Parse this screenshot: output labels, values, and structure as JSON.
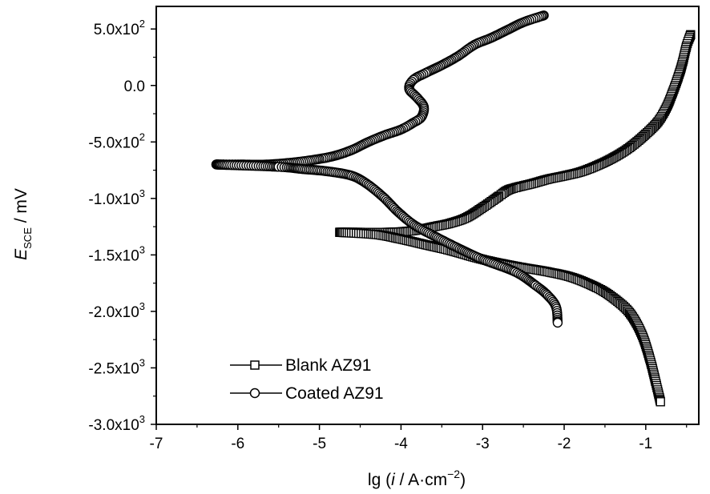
{
  "chart_data": {
    "type": "line",
    "xlabel": {
      "base": "lg (",
      "italic": "i",
      "middle": " / A·cm",
      "sup": "−2",
      "end": ")"
    },
    "ylabel": {
      "var": "E",
      "sub": "SCE",
      "unit": " / mV"
    },
    "xlim": [
      -7,
      -0.35
    ],
    "ylim": [
      -3000,
      700
    ],
    "x_ticks": [
      -7,
      -6,
      -5,
      -4,
      -3,
      -2,
      -1
    ],
    "x_tick_labels": [
      "-7",
      "-6",
      "-5",
      "-4",
      "-3",
      "-2",
      "-1"
    ],
    "y_ticks": [
      500,
      0,
      -500,
      -1000,
      -1500,
      -2000,
      -2500,
      -3000
    ],
    "y_tick_labels": [
      {
        "main": "5.0x10",
        "exp": "2"
      },
      {
        "main": "0.0",
        "exp": ""
      },
      {
        "main": "-5.0x10",
        "exp": "2"
      },
      {
        "main": "-1.0x10",
        "exp": "3"
      },
      {
        "main": "-1.5x10",
        "exp": "3"
      },
      {
        "main": "-2.0x10",
        "exp": "3"
      },
      {
        "main": "-2.5x10",
        "exp": "3"
      },
      {
        "main": "-3.0x10",
        "exp": "3"
      }
    ],
    "grid": false,
    "legend_position": "bottom-left",
    "series": [
      {
        "name": "Blank AZ91",
        "marker": "square",
        "points": [
          [
            -0.45,
            450
          ],
          [
            -0.5,
            350
          ],
          [
            -0.55,
            200
          ],
          [
            -0.6,
            80
          ],
          [
            -0.68,
            -80
          ],
          [
            -0.75,
            -200
          ],
          [
            -0.85,
            -320
          ],
          [
            -1.0,
            -430
          ],
          [
            -1.2,
            -550
          ],
          [
            -1.4,
            -640
          ],
          [
            -1.6,
            -710
          ],
          [
            -1.8,
            -765
          ],
          [
            -2.0,
            -800
          ],
          [
            -2.2,
            -830
          ],
          [
            -2.4,
            -870
          ],
          [
            -2.6,
            -905
          ],
          [
            -2.7,
            -930
          ],
          [
            -2.8,
            -980
          ],
          [
            -3.0,
            -1080
          ],
          [
            -3.2,
            -1170
          ],
          [
            -3.4,
            -1220
          ],
          [
            -3.6,
            -1250
          ],
          [
            -3.8,
            -1280
          ],
          [
            -4.0,
            -1295
          ],
          [
            -4.2,
            -1300
          ],
          [
            -4.45,
            -1300
          ],
          [
            -4.75,
            -1300
          ],
          [
            -4.3,
            -1320
          ],
          [
            -4.0,
            -1360
          ],
          [
            -3.7,
            -1410
          ],
          [
            -3.4,
            -1460
          ],
          [
            -3.0,
            -1540
          ],
          [
            -2.6,
            -1600
          ],
          [
            -2.2,
            -1650
          ],
          [
            -1.9,
            -1700
          ],
          [
            -1.6,
            -1790
          ],
          [
            -1.4,
            -1880
          ],
          [
            -1.2,
            -2010
          ],
          [
            -1.05,
            -2200
          ],
          [
            -0.95,
            -2420
          ],
          [
            -0.88,
            -2620
          ],
          [
            -0.82,
            -2800
          ]
        ]
      },
      {
        "name": "Coated AZ91",
        "marker": "circle",
        "points": [
          [
            -2.25,
            620
          ],
          [
            -2.5,
            560
          ],
          [
            -2.7,
            490
          ],
          [
            -2.9,
            420
          ],
          [
            -3.1,
            360
          ],
          [
            -3.3,
            260
          ],
          [
            -3.5,
            180
          ],
          [
            -3.7,
            110
          ],
          [
            -3.85,
            50
          ],
          [
            -3.9,
            -30
          ],
          [
            -3.8,
            -110
          ],
          [
            -3.72,
            -190
          ],
          [
            -3.75,
            -280
          ],
          [
            -3.85,
            -330
          ],
          [
            -4.0,
            -390
          ],
          [
            -4.2,
            -440
          ],
          [
            -4.4,
            -500
          ],
          [
            -4.6,
            -570
          ],
          [
            -4.8,
            -620
          ],
          [
            -5.0,
            -650
          ],
          [
            -5.3,
            -680
          ],
          [
            -5.65,
            -700
          ],
          [
            -5.97,
            -700
          ],
          [
            -6.25,
            -700
          ],
          [
            -5.5,
            -720
          ],
          [
            -5.2,
            -740
          ],
          [
            -4.9,
            -760
          ],
          [
            -4.6,
            -800
          ],
          [
            -4.4,
            -880
          ],
          [
            -4.2,
            -1000
          ],
          [
            -4.05,
            -1110
          ],
          [
            -3.85,
            -1230
          ],
          [
            -3.6,
            -1330
          ],
          [
            -3.3,
            -1440
          ],
          [
            -3.0,
            -1540
          ],
          [
            -2.6,
            -1650
          ],
          [
            -2.35,
            -1770
          ],
          [
            -2.2,
            -1860
          ],
          [
            -2.1,
            -1960
          ],
          [
            -2.08,
            -2100
          ]
        ]
      }
    ]
  }
}
